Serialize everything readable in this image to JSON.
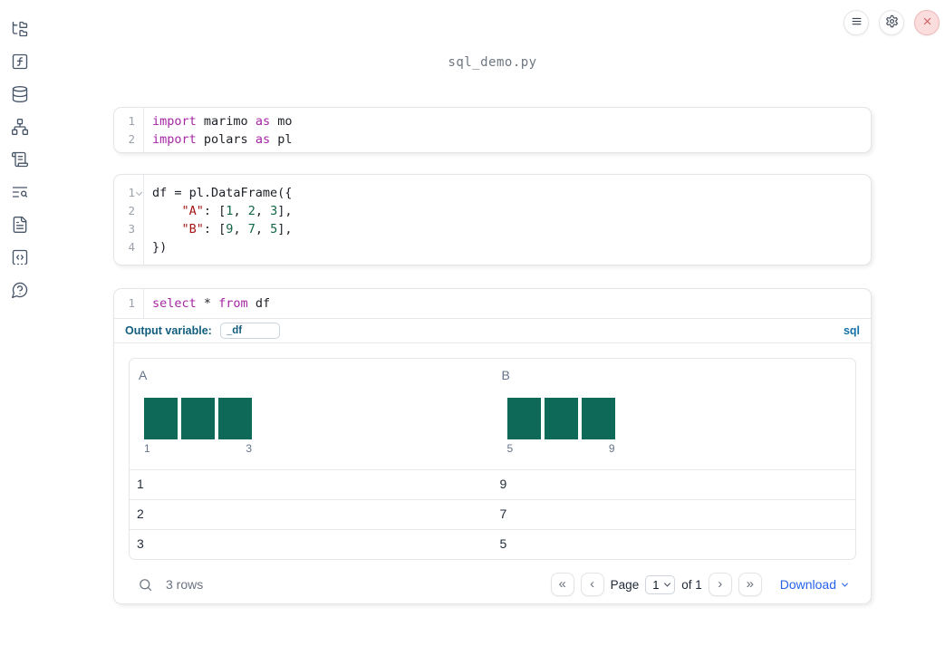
{
  "app": {
    "filename": "sql_demo.py"
  },
  "topbar": {
    "buttons": [
      {
        "name": "notebook-menu",
        "icon": "hamburger-menu-icon"
      },
      {
        "name": "settings",
        "icon": "gear-icon"
      },
      {
        "name": "shutdown",
        "icon": "close-x-icon"
      }
    ]
  },
  "sidebar": {
    "items": [
      {
        "name": "file-explorer",
        "icon": "folder-tree-icon"
      },
      {
        "name": "variables",
        "icon": "function-square-icon"
      },
      {
        "name": "data-sources",
        "icon": "database-icon"
      },
      {
        "name": "dependencies",
        "icon": "network-graph-icon"
      },
      {
        "name": "scratchpad",
        "icon": "scroll-icon"
      },
      {
        "name": "logs",
        "icon": "text-search-icon"
      },
      {
        "name": "documentation",
        "icon": "file-text-icon"
      },
      {
        "name": "snippets",
        "icon": "code-square-icon"
      },
      {
        "name": "help",
        "icon": "question-bubble-icon"
      }
    ]
  },
  "cells": [
    {
      "name": "imports-cell",
      "lines": [
        {
          "num": "1",
          "tokens": [
            {
              "c": "kw",
              "v": "import"
            },
            {
              "c": "pl",
              "v": " marimo "
            },
            {
              "c": "kw",
              "v": "as"
            },
            {
              "c": "pl",
              "v": " mo"
            }
          ]
        },
        {
          "num": "2",
          "tokens": [
            {
              "c": "kw",
              "v": "import"
            },
            {
              "c": "pl",
              "v": " polars "
            },
            {
              "c": "kw",
              "v": "as"
            },
            {
              "c": "pl",
              "v": " pl"
            }
          ]
        }
      ]
    },
    {
      "name": "dataframe-cell",
      "lines": [
        {
          "num": "1",
          "fold": true,
          "tokens": [
            {
              "c": "pl",
              "v": "df = pl.DataFrame({"
            }
          ]
        },
        {
          "num": "2",
          "tokens": [
            {
              "c": "pl",
              "v": "    "
            },
            {
              "c": "str",
              "v": "\"A\""
            },
            {
              "c": "pl",
              "v": ": ["
            },
            {
              "c": "num",
              "v": "1"
            },
            {
              "c": "pl",
              "v": ", "
            },
            {
              "c": "num",
              "v": "2"
            },
            {
              "c": "pl",
              "v": ", "
            },
            {
              "c": "num",
              "v": "3"
            },
            {
              "c": "pl",
              "v": "],"
            }
          ]
        },
        {
          "num": "3",
          "tokens": [
            {
              "c": "pl",
              "v": "    "
            },
            {
              "c": "str",
              "v": "\"B\""
            },
            {
              "c": "pl",
              "v": ": ["
            },
            {
              "c": "num",
              "v": "9"
            },
            {
              "c": "pl",
              "v": ", "
            },
            {
              "c": "num",
              "v": "7"
            },
            {
              "c": "pl",
              "v": ", "
            },
            {
              "c": "num",
              "v": "5"
            },
            {
              "c": "pl",
              "v": "],"
            }
          ]
        },
        {
          "num": "4",
          "tokens": [
            {
              "c": "pl",
              "v": "})"
            }
          ]
        }
      ]
    },
    {
      "name": "sql-cell",
      "lines": [
        {
          "num": "1",
          "tokens": [
            {
              "c": "kw",
              "v": "select"
            },
            {
              "c": "pl",
              "v": " * "
            },
            {
              "c": "kw",
              "v": "from"
            },
            {
              "c": "pl",
              "v": " df"
            }
          ]
        }
      ],
      "footer": {
        "output_variable_label": "Output variable:",
        "output_variable_value": "_df",
        "language_label": "sql"
      }
    }
  ],
  "table": {
    "columns": [
      {
        "name": "A",
        "histogram": {
          "bars": [
            1,
            1,
            1
          ],
          "min_label": "1",
          "max_label": "3"
        }
      },
      {
        "name": "B",
        "histogram": {
          "bars": [
            1,
            1,
            1
          ],
          "min_label": "5",
          "max_label": "9"
        }
      }
    ],
    "rows": [
      [
        "1",
        "9"
      ],
      [
        "2",
        "7"
      ],
      [
        "3",
        "5"
      ]
    ],
    "footer": {
      "row_count": "3 rows",
      "page_label": "Page",
      "page_value": "1",
      "of_label": "of 1",
      "download_label": "Download",
      "pager": {
        "first": "«",
        "prev": "‹",
        "next": "›",
        "last": "»"
      }
    }
  },
  "colors": {
    "histogram_bar": "#0e6958",
    "keyword": "#a626a4",
    "string": "#a31515",
    "number": "#116644",
    "accent_blue": "#2563eb",
    "sql_badge": "#1472a8",
    "output_variable_label": "#125d7e",
    "close_button_bg": "#fbdddd",
    "close_button_icon": "#cf5a5a",
    "sidebar_icon": "#475569"
  }
}
